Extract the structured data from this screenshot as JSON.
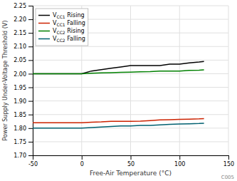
{
  "chart_data": {
    "type": "line",
    "title": "",
    "xlabel": "Free-Air Temperature (°C)",
    "ylabel": "Power Supply Under-Voltage Threshold (V)",
    "x": [
      -50,
      -40,
      -30,
      -20,
      -10,
      0,
      10,
      20,
      30,
      40,
      50,
      60,
      70,
      80,
      90,
      100,
      110,
      120,
      125
    ],
    "series": [
      {
        "name": "VCC1 Rising",
        "color": "#000000",
        "values": [
          2.0,
          2.0,
          2.0,
          2.0,
          2.0,
          2.0,
          2.01,
          2.015,
          2.02,
          2.025,
          2.03,
          2.03,
          2.03,
          2.03,
          2.035,
          2.035,
          2.04,
          2.043,
          2.045
        ]
      },
      {
        "name": "VCC1 Falling",
        "color": "#cc2200",
        "values": [
          1.82,
          1.82,
          1.82,
          1.82,
          1.82,
          1.82,
          1.822,
          1.823,
          1.825,
          1.825,
          1.825,
          1.826,
          1.828,
          1.83,
          1.831,
          1.832,
          1.833,
          1.834,
          1.835
        ]
      },
      {
        "name": "VCC2 Rising",
        "color": "#008000",
        "values": [
          2.0,
          2.0,
          2.0,
          2.0,
          2.0,
          2.0,
          2.002,
          2.003,
          2.004,
          2.005,
          2.006,
          2.007,
          2.008,
          2.01,
          2.01,
          2.01,
          2.012,
          2.013,
          2.014
        ]
      },
      {
        "name": "VCC2 Falling",
        "color": "#006070",
        "values": [
          1.8,
          1.8,
          1.8,
          1.8,
          1.8,
          1.8,
          1.802,
          1.804,
          1.806,
          1.808,
          1.808,
          1.81,
          1.81,
          1.812,
          1.814,
          1.815,
          1.816,
          1.817,
          1.818
        ]
      }
    ],
    "xlim": [
      -50,
      150
    ],
    "ylim": [
      1.7,
      2.25
    ],
    "xticks": [
      -50,
      0,
      50,
      100,
      150
    ],
    "yticks": [
      {
        "value": 1.7,
        "label": "1.70"
      },
      {
        "value": 1.75,
        "label": "1.75"
      },
      {
        "value": 1.8,
        "label": "1.80"
      },
      {
        "value": 1.85,
        "label": "1.85"
      },
      {
        "value": 1.9,
        "label": "1.90"
      },
      {
        "value": 1.95,
        "label": "1.95"
      },
      {
        "value": 2.0,
        "label": "2.00"
      },
      {
        "value": 2.05,
        "label": "2.05"
      },
      {
        "value": 2.1,
        "label": "2.10"
      },
      {
        "value": 2.15,
        "label": "2.15"
      },
      {
        "value": 2.2,
        "label": "2.20"
      },
      {
        "value": 2.25,
        "label": "2.25"
      }
    ],
    "grid": true,
    "legend": "upper left",
    "annotations": [
      {
        "text": "C005"
      }
    ]
  }
}
